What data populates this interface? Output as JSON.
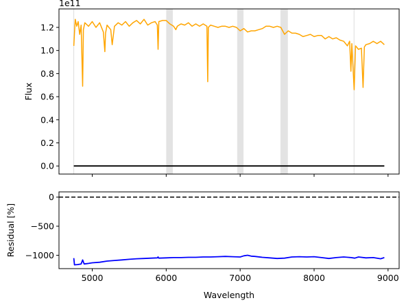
{
  "chart_data": [
    {
      "type": "line",
      "panel": "top",
      "xlabel": "",
      "ylabel": "Flux",
      "offset_text": "1e11",
      "xlim": [
        4550,
        9150
      ],
      "ylim": [
        -0.07,
        1.36
      ],
      "y_scale_factor": 100000000000.0,
      "yticks": [
        0.0,
        0.2,
        0.4,
        0.6,
        0.8,
        1.0,
        1.2
      ],
      "ytick_labels": [
        "0.0",
        "0.2",
        "0.4",
        "0.6",
        "0.8",
        "1.0",
        "1.2"
      ],
      "xticks": [
        5000,
        6000,
        7000,
        8000,
        9000
      ],
      "shaded_regions": [
        [
          6000,
          6090
        ],
        [
          6960,
          7045
        ],
        [
          7545,
          7645
        ]
      ],
      "vertical_lines": [
        4750,
        8540
      ],
      "series": [
        {
          "color": "#ffa500",
          "x": [
            4750,
            4770,
            4790,
            4810,
            4830,
            4850,
            4870,
            4880,
            4900,
            4950,
            5000,
            5050,
            5100,
            5150,
            5170,
            5180,
            5200,
            5250,
            5270,
            5300,
            5350,
            5400,
            5450,
            5500,
            5550,
            5600,
            5650,
            5700,
            5750,
            5800,
            5850,
            5880,
            5890,
            5900,
            5950,
            6000,
            6050,
            6100,
            6130,
            6150,
            6200,
            6250,
            6300,
            6350,
            6400,
            6450,
            6500,
            6550,
            6562,
            6570,
            6600,
            6650,
            6700,
            6750,
            6800,
            6850,
            6900,
            6950,
            7000,
            7050,
            7100,
            7150,
            7200,
            7250,
            7300,
            7350,
            7400,
            7450,
            7500,
            7550,
            7600,
            7650,
            7700,
            7750,
            7800,
            7850,
            7900,
            7950,
            8000,
            8050,
            8100,
            8150,
            8200,
            8250,
            8300,
            8350,
            8400,
            8450,
            8480,
            8498,
            8510,
            8542,
            8560,
            8600,
            8640,
            8662,
            8680,
            8700,
            8750,
            8800,
            8850,
            8900,
            8950
          ],
          "values": [
            1.04,
            1.27,
            1.21,
            1.25,
            1.14,
            1.22,
            0.69,
            1.18,
            1.24,
            1.21,
            1.25,
            1.2,
            1.24,
            1.16,
            0.99,
            1.15,
            1.22,
            1.18,
            1.05,
            1.21,
            1.24,
            1.22,
            1.25,
            1.21,
            1.24,
            1.26,
            1.23,
            1.27,
            1.22,
            1.24,
            1.25,
            1.22,
            1.01,
            1.25,
            1.26,
            1.26,
            1.23,
            1.21,
            1.18,
            1.21,
            1.23,
            1.22,
            1.24,
            1.21,
            1.23,
            1.21,
            1.23,
            1.21,
            0.73,
            1.2,
            1.22,
            1.21,
            1.2,
            1.21,
            1.21,
            1.2,
            1.21,
            1.2,
            1.17,
            1.19,
            1.16,
            1.17,
            1.17,
            1.18,
            1.19,
            1.21,
            1.21,
            1.2,
            1.21,
            1.2,
            1.14,
            1.17,
            1.15,
            1.15,
            1.14,
            1.12,
            1.13,
            1.14,
            1.12,
            1.13,
            1.13,
            1.1,
            1.12,
            1.1,
            1.11,
            1.09,
            1.08,
            1.04,
            1.08,
            0.82,
            1.06,
            0.66,
            1.04,
            1.01,
            1.02,
            0.68,
            1.03,
            1.05,
            1.06,
            1.08,
            1.06,
            1.08,
            1.05
          ]
        },
        {
          "color": "#000000",
          "x": [
            4750,
            8950
          ],
          "values": [
            0.0,
            0.0
          ]
        }
      ]
    },
    {
      "type": "line",
      "panel": "bottom",
      "xlabel": "Wavelength",
      "ylabel": "Residual [%]",
      "xlim": [
        4550,
        9150
      ],
      "ylim": [
        -1230,
        90
      ],
      "xticks": [
        5000,
        6000,
        7000,
        8000,
        9000
      ],
      "xtick_labels": [
        "5000",
        "6000",
        "7000",
        "8000",
        "9000"
      ],
      "yticks": [
        0,
        -500,
        -1000
      ],
      "ytick_labels": [
        "0",
        "−500",
        "−1000"
      ],
      "reference_line": {
        "value": 0,
        "style": "dashed",
        "color": "#000000"
      },
      "series": [
        {
          "color": "#0000ff",
          "x": [
            4750,
            4760,
            4800,
            4850,
            4870,
            4890,
            4950,
            5000,
            5100,
            5200,
            5300,
            5400,
            5500,
            5600,
            5700,
            5800,
            5880,
            5890,
            5900,
            6000,
            6100,
            6200,
            6300,
            6400,
            6500,
            6600,
            6700,
            6800,
            6900,
            7000,
            7050,
            7100,
            7150,
            7200,
            7300,
            7400,
            7500,
            7600,
            7700,
            7800,
            7900,
            8000,
            8100,
            8200,
            8300,
            8400,
            8500,
            8550,
            8600,
            8700,
            8800,
            8900,
            8950
          ],
          "values": [
            -1050,
            -1165,
            -1160,
            -1150,
            -1080,
            -1150,
            -1140,
            -1130,
            -1120,
            -1100,
            -1090,
            -1080,
            -1070,
            -1060,
            -1055,
            -1050,
            -1045,
            -1030,
            -1050,
            -1045,
            -1040,
            -1040,
            -1035,
            -1035,
            -1030,
            -1030,
            -1025,
            -1020,
            -1025,
            -1030,
            -1010,
            -1000,
            -1015,
            -1020,
            -1035,
            -1045,
            -1055,
            -1050,
            -1030,
            -1025,
            -1030,
            -1025,
            -1040,
            -1055,
            -1040,
            -1030,
            -1040,
            -1050,
            -1030,
            -1045,
            -1040,
            -1060,
            -1040
          ]
        }
      ]
    }
  ]
}
